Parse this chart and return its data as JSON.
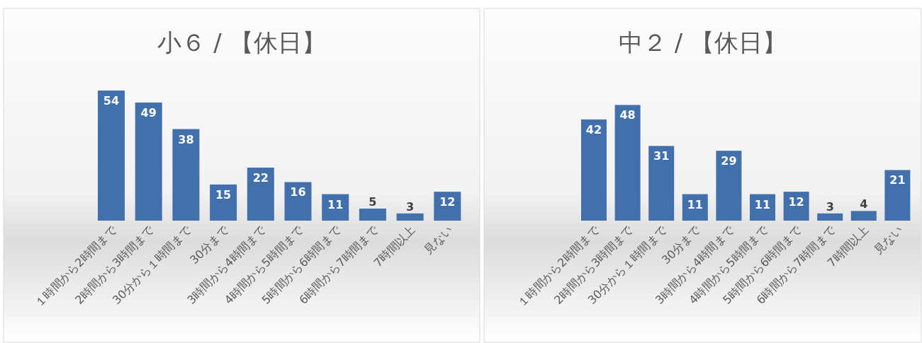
{
  "chart_data": [
    {
      "type": "bar",
      "title": "小６ / 【休日】",
      "categories": [
        "１時間から2時間まで",
        "2時間から3時間まで",
        "30分から１時間まで",
        "30分まで",
        "3時間から4時間まで",
        "4時間から5時間まで",
        "5時間から6時間まで",
        "6時間から7時間まで",
        "7時間以上",
        "見ない"
      ],
      "values": [
        54,
        49,
        38,
        15,
        22,
        16,
        11,
        5,
        3,
        12
      ],
      "color": "#4170ad",
      "data_labels": true
    },
    {
      "type": "bar",
      "title": "中２ / 【休日】",
      "categories": [
        "１時間から2時間まで",
        "2時間から3時間まで",
        "30分から１時間まで",
        "30分まで",
        "3時間から4時間まで",
        "4時間から5時間まで",
        "5時間から6時間まで",
        "6時間から7時間まで",
        "7時間以上",
        "見ない"
      ],
      "values": [
        42,
        48,
        31,
        11,
        29,
        11,
        12,
        3,
        4,
        21
      ],
      "color": "#4170ad",
      "data_labels": true
    }
  ]
}
